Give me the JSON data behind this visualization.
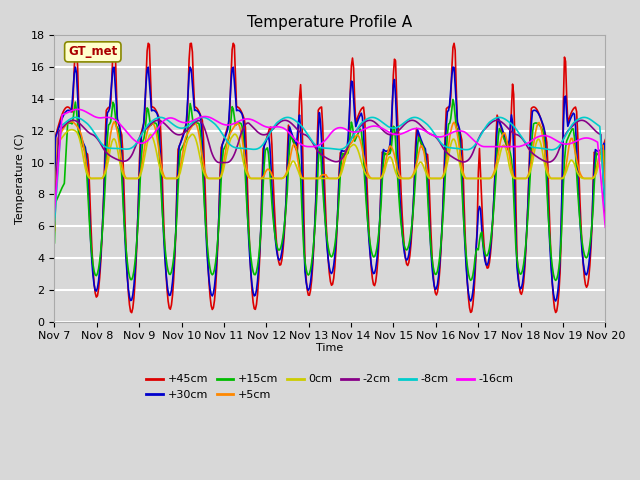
{
  "title": "Temperature Profile A",
  "xlabel": "Time",
  "ylabel": "Temperature (C)",
  "ylim": [
    0,
    18
  ],
  "xlim": [
    0,
    13
  ],
  "bg_color": "#d8d8d8",
  "plot_bg_color": "#d8d8d8",
  "grid_color": "#ffffff",
  "series_order": [
    "+45cm",
    "+30cm",
    "+15cm",
    "+5cm",
    "0cm",
    "-2cm",
    "-8cm",
    "-16cm"
  ],
  "series": {
    "+45cm": {
      "color": "#dd0000",
      "lw": 1.2
    },
    "+30cm": {
      "color": "#0000cc",
      "lw": 1.2
    },
    "+15cm": {
      "color": "#00bb00",
      "lw": 1.2
    },
    "+5cm": {
      "color": "#ff8800",
      "lw": 1.2
    },
    "0cm": {
      "color": "#cccc00",
      "lw": 1.2
    },
    "-2cm": {
      "color": "#880088",
      "lw": 1.2
    },
    "-8cm": {
      "color": "#00cccc",
      "lw": 1.2
    },
    "-16cm": {
      "color": "#ff00ff",
      "lw": 1.2
    }
  },
  "xtick_labels": [
    "Nov 7",
    "Nov 8",
    "Nov 9",
    "Nov 10",
    "Nov 11",
    "Nov 12",
    "Nov 13",
    "Nov 14",
    "Nov 15",
    "Nov 16",
    "Nov 17",
    "Nov 18",
    "Nov 19",
    "Nov 20"
  ],
  "ytick_vals": [
    0,
    2,
    4,
    6,
    8,
    10,
    12,
    14,
    16,
    18
  ],
  "annotation_text": "GT_met",
  "annotation_color": "#aa0000",
  "annotation_bg": "#ffffcc",
  "annotation_edge": "#888800",
  "title_fontsize": 11,
  "label_fontsize": 8,
  "legend_fontsize": 8
}
